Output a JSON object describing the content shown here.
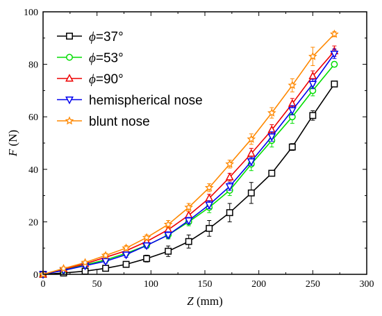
{
  "chart_data": {
    "type": "line",
    "xlabel": {
      "symbol": "Z",
      "unit": " (mm)"
    },
    "ylabel": {
      "symbol": "F",
      "unit": " (N)"
    },
    "xlim": [
      0,
      300
    ],
    "ylim": [
      0,
      100
    ],
    "xticks": [
      "0",
      "50",
      "100",
      "150",
      "200",
      "250",
      "300"
    ],
    "yticks": [
      "0",
      "20",
      "40",
      "60",
      "80",
      "100"
    ],
    "grid": false,
    "legend_position": "top-left",
    "x": [
      0,
      19,
      39,
      58,
      77,
      96,
      116,
      135,
      154,
      173,
      193,
      212,
      231,
      250,
      270
    ],
    "series": [
      {
        "name": "ϕ=37°",
        "legend": {
          "prefix": "ϕ",
          "suffix": "=37°"
        },
        "color": "#000000",
        "marker": "square",
        "values": [
          0,
          0.5,
          1.2,
          2.3,
          3.8,
          6,
          8.8,
          12.5,
          17.5,
          23.5,
          31,
          38.5,
          48.5,
          60.5,
          72.5
        ],
        "errors": [
          0,
          0.3,
          0.5,
          0.8,
          1,
          1.3,
          2,
          2.5,
          3,
          3.5,
          4,
          1,
          1.3,
          1.8,
          1
        ]
      },
      {
        "name": "ϕ=53°",
        "legend": {
          "prefix": "ϕ",
          "suffix": "=53°"
        },
        "color": "#00dd00",
        "marker": "circle",
        "values": [
          0,
          1.6,
          3.6,
          5.5,
          8,
          11,
          15,
          20,
          25.5,
          32,
          42,
          51,
          60,
          70,
          80
        ],
        "errors": [
          0,
          0.3,
          0.5,
          0.8,
          1,
          1,
          1.5,
          1.5,
          2,
          2,
          2.5,
          2.5,
          2.5,
          2,
          1
        ]
      },
      {
        "name": "ϕ=90°",
        "legend": {
          "prefix": "ϕ",
          "suffix": "=90°"
        },
        "color": "#ee0000",
        "marker": "triangle-up",
        "values": [
          0,
          2,
          4,
          6.5,
          9,
          12.5,
          17,
          22.5,
          29,
          37,
          46,
          55,
          65,
          75.5,
          85
        ],
        "errors": [
          0,
          0.3,
          0.5,
          0.8,
          1,
          1,
          1.5,
          1.5,
          1.5,
          1.5,
          2,
          2,
          2,
          2,
          2
        ]
      },
      {
        "name": "hemispherical nose",
        "color": "#0000ee",
        "marker": "triangle-down",
        "values": [
          0,
          1.5,
          3.3,
          5,
          7.5,
          11,
          15,
          20.5,
          26.5,
          33.5,
          43,
          52.5,
          62.5,
          72.5,
          84
        ],
        "errors": [
          0,
          0.3,
          0.5,
          0.8,
          1,
          1,
          1.2,
          1.2,
          1.5,
          1.5,
          1.5,
          1.8,
          1.8,
          1.8,
          1.8
        ]
      },
      {
        "name": "blunt nose",
        "color": "#ff8800",
        "marker": "star",
        "values": [
          0,
          2.2,
          4.5,
          7.2,
          10,
          14,
          19,
          25.5,
          33,
          42,
          51.5,
          61.5,
          72,
          83,
          91.5
        ],
        "errors": [
          0,
          0.3,
          0.5,
          0.8,
          1,
          1,
          1.5,
          1.5,
          1.5,
          1.5,
          2,
          2,
          2.5,
          3.5,
          1
        ]
      }
    ]
  }
}
